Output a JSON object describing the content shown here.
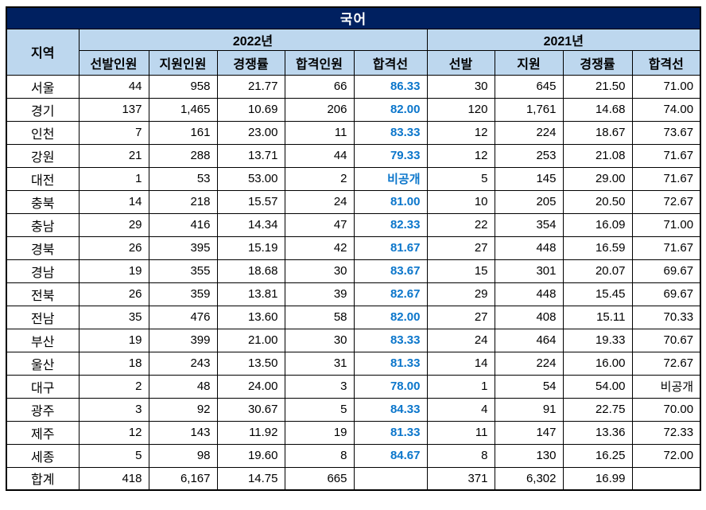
{
  "title": "국어",
  "colors": {
    "title_bg": "#002060",
    "title_fg": "#FFFFFF",
    "header_bg": "#BDD7EE",
    "cutoff_blue": "#0B76CB",
    "border": "#000000"
  },
  "header": {
    "region": "지역",
    "groups": [
      {
        "label": "2022년",
        "cols": [
          "선발인원",
          "지원인원",
          "경쟁률",
          "합격인원",
          "합격선"
        ]
      },
      {
        "label": "2021년",
        "cols": [
          "선발",
          "지원",
          "경쟁률",
          "합격선"
        ]
      }
    ]
  },
  "chart_data": {
    "type": "table",
    "title": "국어",
    "columns": [
      "지역",
      "2022 선발인원",
      "2022 지원인원",
      "2022 경쟁률",
      "2022 합격인원",
      "2022 합격선",
      "2021 선발",
      "2021 지원",
      "2021 경쟁률",
      "2021 합격선"
    ]
  },
  "rows": [
    {
      "region": "서울",
      "cells": [
        "44",
        "958",
        "21.77",
        "66",
        "86.33",
        "30",
        "645",
        "21.50",
        "71.00"
      ]
    },
    {
      "region": "경기",
      "cells": [
        "137",
        "1,465",
        "10.69",
        "206",
        "82.00",
        "120",
        "1,761",
        "14.68",
        "74.00"
      ]
    },
    {
      "region": "인천",
      "cells": [
        "7",
        "161",
        "23.00",
        "11",
        "83.33",
        "12",
        "224",
        "18.67",
        "73.67"
      ]
    },
    {
      "region": "강원",
      "cells": [
        "21",
        "288",
        "13.71",
        "44",
        "79.33",
        "12",
        "253",
        "21.08",
        "71.67"
      ]
    },
    {
      "region": "대전",
      "cells": [
        "1",
        "53",
        "53.00",
        "2",
        "비공개",
        "5",
        "145",
        "29.00",
        "71.67"
      ]
    },
    {
      "region": "충북",
      "cells": [
        "14",
        "218",
        "15.57",
        "24",
        "81.00",
        "10",
        "205",
        "20.50",
        "72.67"
      ]
    },
    {
      "region": "충남",
      "cells": [
        "29",
        "416",
        "14.34",
        "47",
        "82.33",
        "22",
        "354",
        "16.09",
        "71.00"
      ]
    },
    {
      "region": "경북",
      "cells": [
        "26",
        "395",
        "15.19",
        "42",
        "81.67",
        "27",
        "448",
        "16.59",
        "71.67"
      ]
    },
    {
      "region": "경남",
      "cells": [
        "19",
        "355",
        "18.68",
        "30",
        "83.67",
        "15",
        "301",
        "20.07",
        "69.67"
      ]
    },
    {
      "region": "전북",
      "cells": [
        "26",
        "359",
        "13.81",
        "39",
        "82.67",
        "29",
        "448",
        "15.45",
        "69.67"
      ]
    },
    {
      "region": "전남",
      "cells": [
        "35",
        "476",
        "13.60",
        "58",
        "82.00",
        "27",
        "408",
        "15.11",
        "70.33"
      ]
    },
    {
      "region": "부산",
      "cells": [
        "19",
        "399",
        "21.00",
        "30",
        "83.33",
        "24",
        "464",
        "19.33",
        "70.67"
      ]
    },
    {
      "region": "울산",
      "cells": [
        "18",
        "243",
        "13.50",
        "31",
        "81.33",
        "14",
        "224",
        "16.00",
        "72.67"
      ]
    },
    {
      "region": "대구",
      "cells": [
        "2",
        "48",
        "24.00",
        "3",
        "78.00",
        "1",
        "54",
        "54.00",
        "비공개"
      ]
    },
    {
      "region": "광주",
      "cells": [
        "3",
        "92",
        "30.67",
        "5",
        "84.33",
        "4",
        "91",
        "22.75",
        "70.00"
      ]
    },
    {
      "region": "제주",
      "cells": [
        "12",
        "143",
        "11.92",
        "19",
        "81.33",
        "11",
        "147",
        "13.36",
        "72.33"
      ]
    },
    {
      "region": "세종",
      "cells": [
        "5",
        "98",
        "19.60",
        "8",
        "84.67",
        "8",
        "130",
        "16.25",
        "72.00"
      ]
    },
    {
      "region": "합계",
      "cells": [
        "418",
        "6,167",
        "14.75",
        "665",
        "",
        "371",
        "6,302",
        "16.99",
        ""
      ]
    }
  ]
}
